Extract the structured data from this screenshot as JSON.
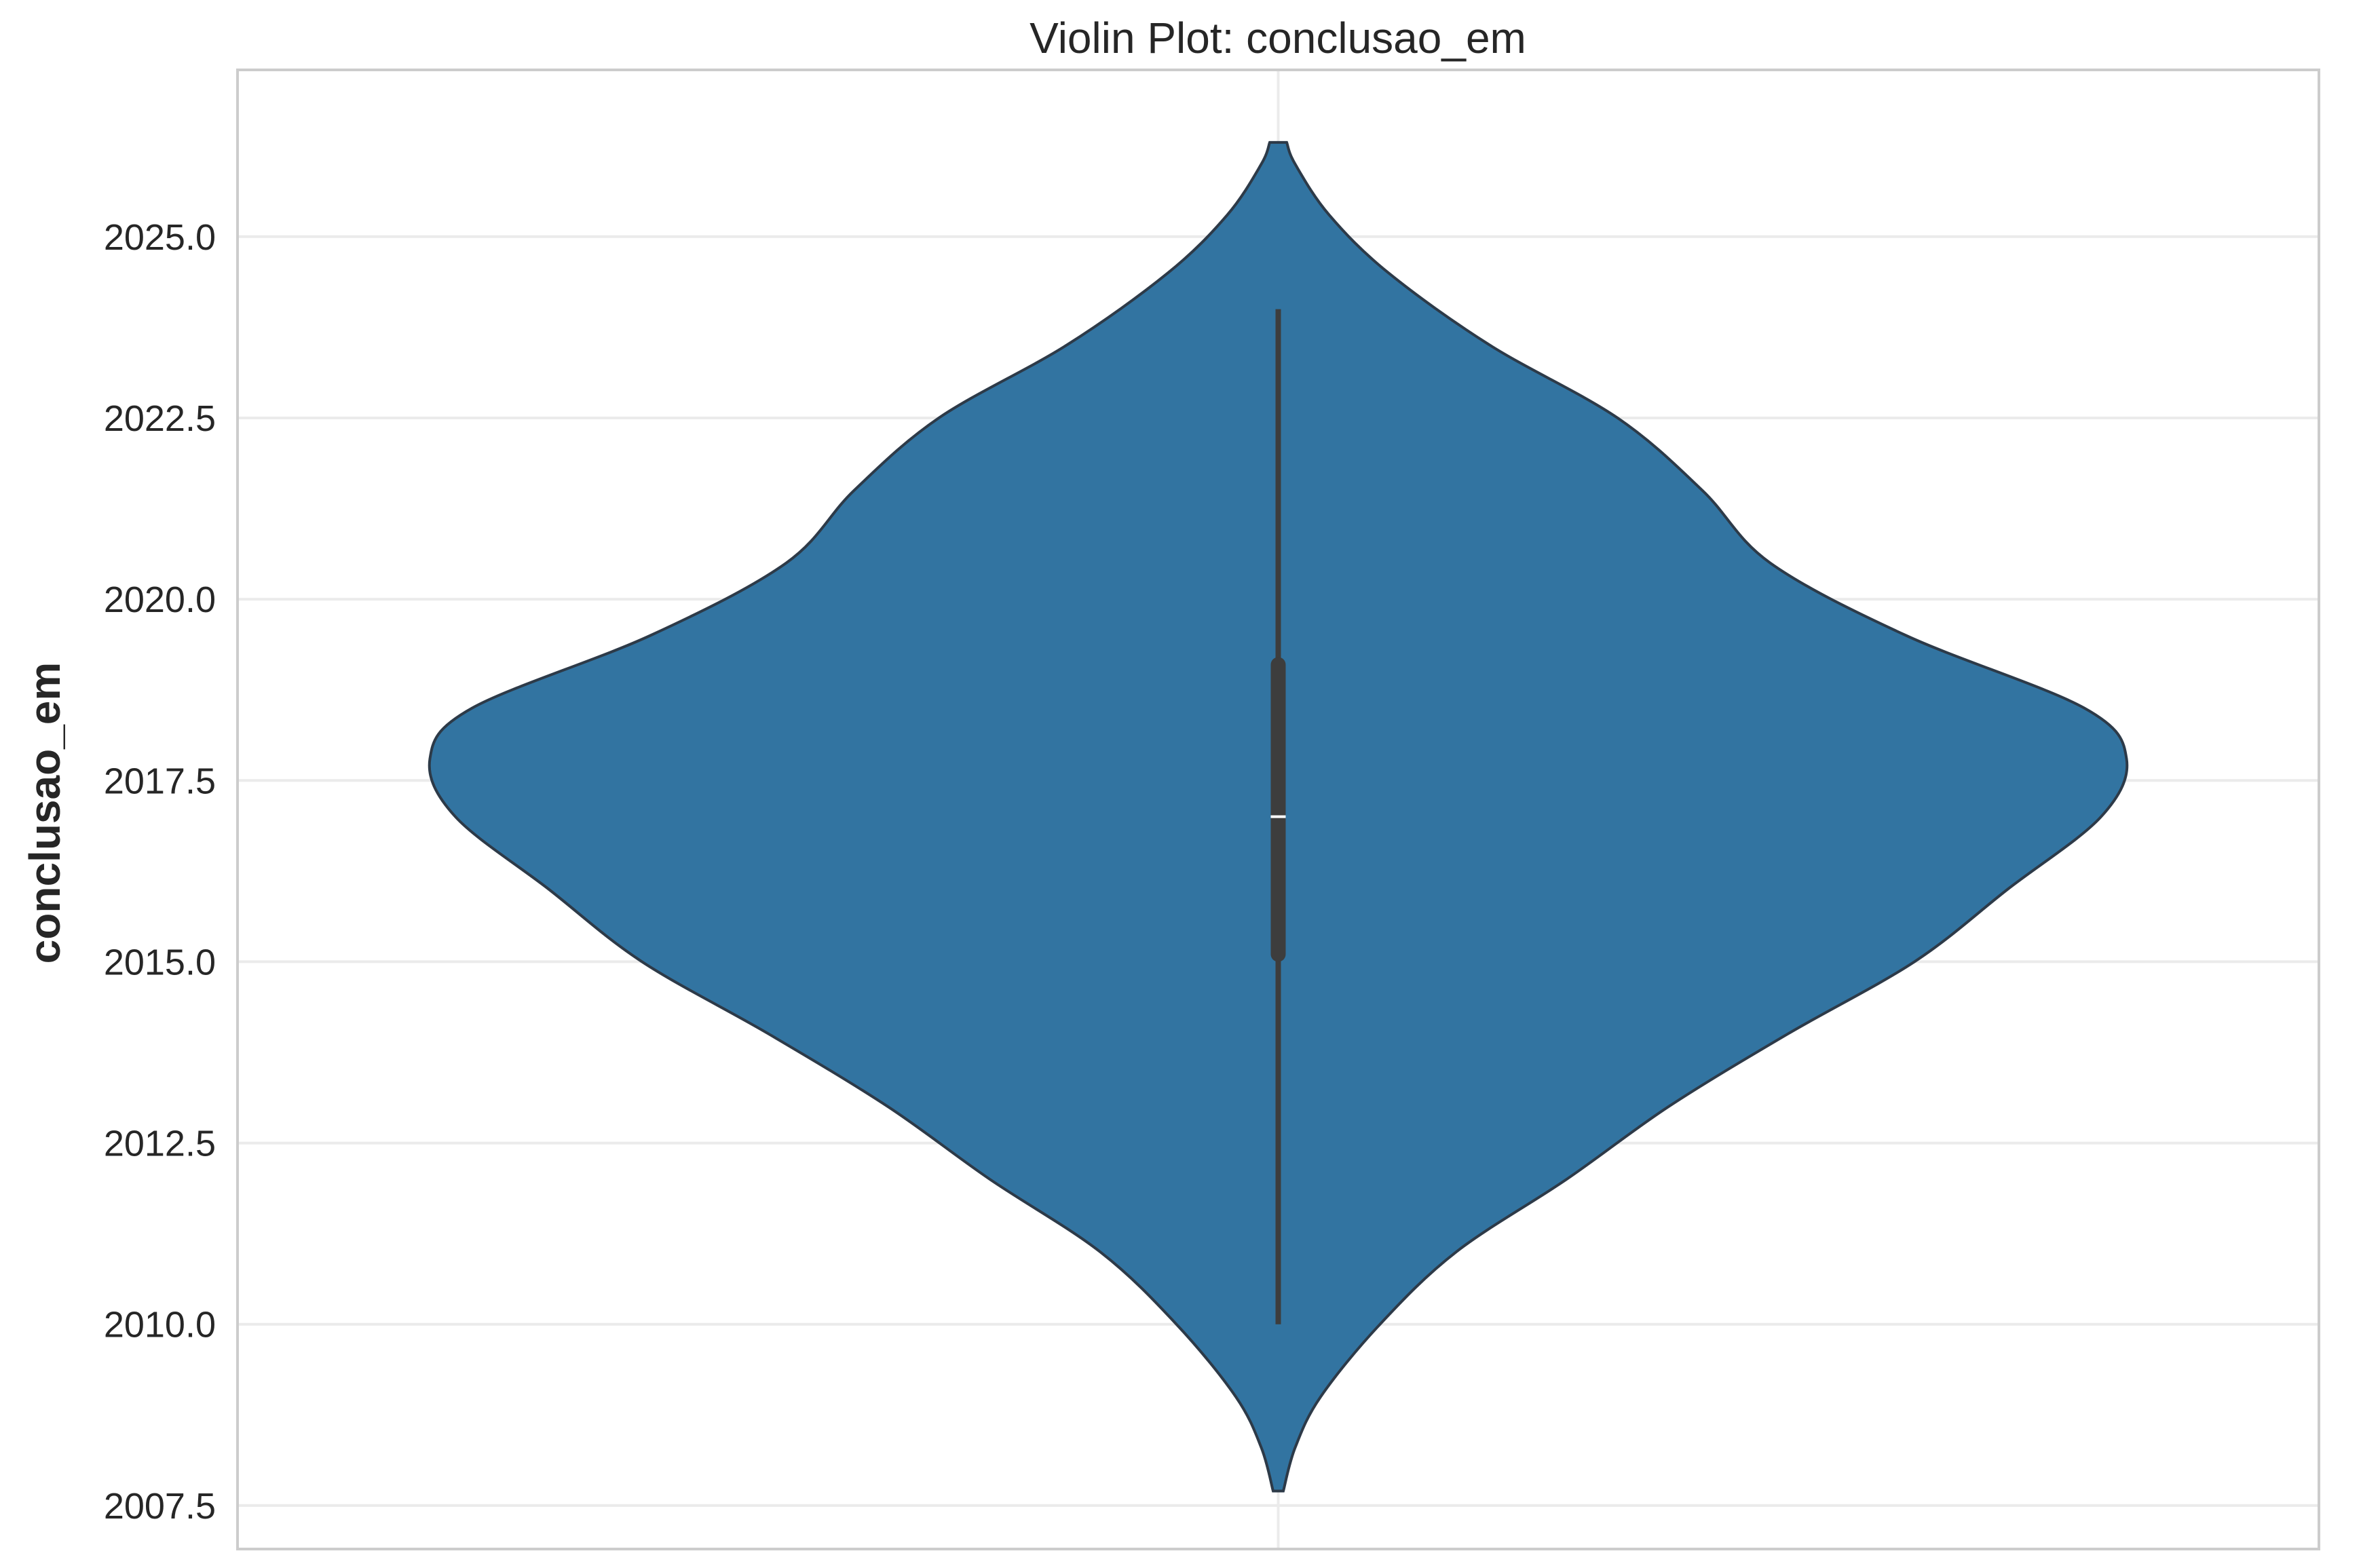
{
  "chart_data": {
    "type": "violin",
    "title": "Violin Plot: conclusao_em",
    "xlabel": "",
    "ylabel": "conclusao_em",
    "ylim": [
      2006.9,
      2027.3
    ],
    "yticks": [
      2007.5,
      2010.0,
      2012.5,
      2015.0,
      2017.5,
      2020.0,
      2022.5,
      2025.0
    ],
    "ytick_labels": [
      "2007.5",
      "2010.0",
      "2012.5",
      "2015.0",
      "2017.5",
      "2020.0",
      "2022.5",
      "2025.0"
    ],
    "grid": true,
    "series": [
      {
        "density_range": [
          2007.7,
          2026.3
        ],
        "density_profile": [
          {
            "y": 2007.7,
            "w": 0.006
          },
          {
            "y": 2008.3,
            "w": 0.02
          },
          {
            "y": 2009.0,
            "w": 0.05
          },
          {
            "y": 2010.0,
            "w": 0.12
          },
          {
            "y": 2011.0,
            "w": 0.21
          },
          {
            "y": 2012.0,
            "w": 0.34
          },
          {
            "y": 2013.0,
            "w": 0.46
          },
          {
            "y": 2014.0,
            "w": 0.6
          },
          {
            "y": 2015.0,
            "w": 0.75
          },
          {
            "y": 2016.0,
            "w": 0.86
          },
          {
            "y": 2017.0,
            "w": 0.97
          },
          {
            "y": 2017.8,
            "w": 1.0
          },
          {
            "y": 2018.5,
            "w": 0.95
          },
          {
            "y": 2019.5,
            "w": 0.74
          },
          {
            "y": 2020.5,
            "w": 0.58
          },
          {
            "y": 2021.5,
            "w": 0.5
          },
          {
            "y": 2022.5,
            "w": 0.4
          },
          {
            "y": 2023.5,
            "w": 0.25
          },
          {
            "y": 2024.5,
            "w": 0.13
          },
          {
            "y": 2025.3,
            "w": 0.06
          },
          {
            "y": 2026.0,
            "w": 0.02
          },
          {
            "y": 2026.3,
            "w": 0.01
          }
        ],
        "box": {
          "whisker_low": 2010.0,
          "q1": 2015.0,
          "median": 2017.0,
          "q3": 2019.2,
          "whisker_high": 2024.0
        }
      }
    ],
    "colors": {
      "fill": "#3274a1",
      "edge": "#2d3a48",
      "box": "#3d3d3d",
      "median": "#ffffff",
      "grid": "#ebebeb",
      "frame": "#cccccc"
    }
  }
}
